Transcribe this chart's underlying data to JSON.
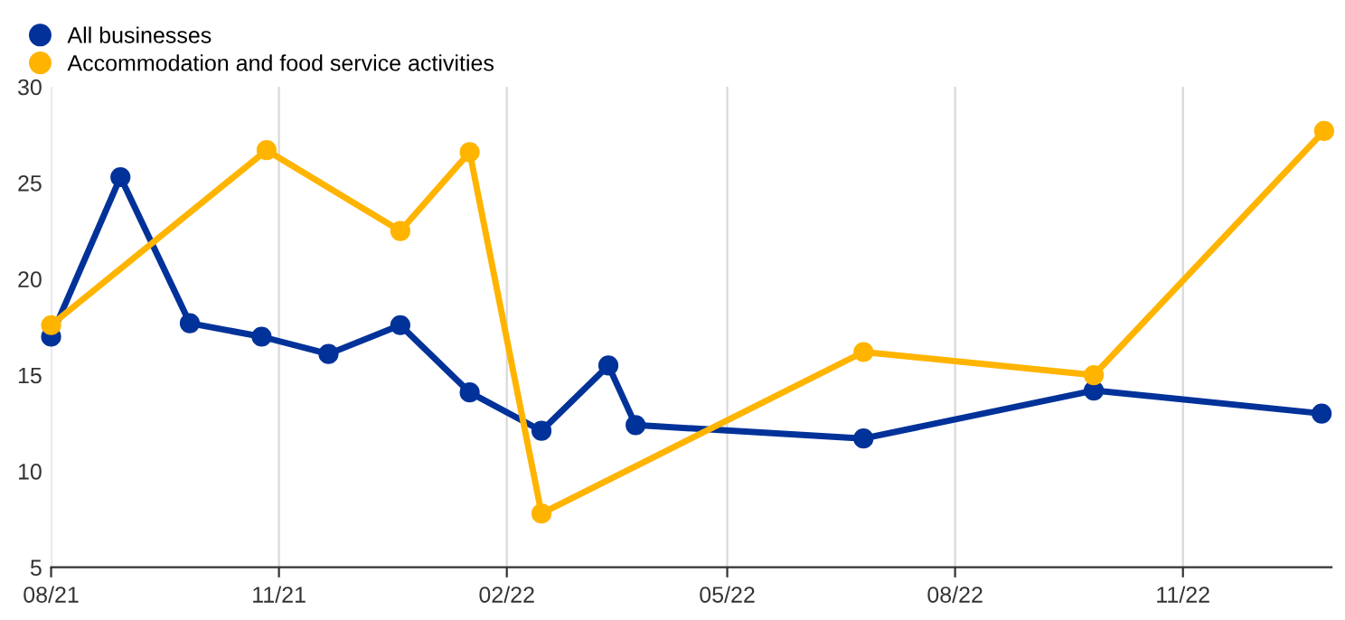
{
  "chart_data": {
    "type": "line",
    "marker": "circle",
    "grid": "x",
    "legend": "top left",
    "xlim": [
      "2021-08-01",
      "2022-12-31"
    ],
    "ylim": [
      5,
      30
    ],
    "yticks": [
      5,
      10,
      15,
      20,
      25,
      30
    ],
    "xticks": [
      {
        "value": "2021-08-01",
        "label": "08/21"
      },
      {
        "value": "2021-11-01",
        "label": "11/21"
      },
      {
        "value": "2022-02-01",
        "label": "02/22"
      },
      {
        "value": "2022-05-01",
        "label": "05/22"
      },
      {
        "value": "2022-08-01",
        "label": "08/22"
      },
      {
        "value": "2022-11-01",
        "label": "11/22"
      }
    ],
    "series": [
      {
        "name": "All businesses",
        "color": "#003299",
        "x": [
          "2021-08-01",
          "2021-08-29",
          "2021-09-26",
          "2021-10-25",
          "2021-11-21",
          "2021-12-20",
          "2022-01-17",
          "2022-02-15",
          "2022-03-14",
          "2022-03-25",
          "2022-06-25",
          "2022-09-26",
          "2022-12-27"
        ],
        "values": [
          17.0,
          25.3,
          17.7,
          17.0,
          16.1,
          17.6,
          14.1,
          12.1,
          15.5,
          12.4,
          11.7,
          14.2,
          13.0
        ]
      },
      {
        "name": "Accommodation and food service activities",
        "color": "#ffb400",
        "x": [
          "2021-08-01",
          "2021-10-27",
          "2021-12-20",
          "2022-01-17",
          "2022-02-15",
          "2022-06-25",
          "2022-09-26",
          "2022-12-28"
        ],
        "values": [
          17.6,
          26.7,
          22.5,
          26.6,
          7.8,
          16.2,
          15.0,
          27.7
        ]
      }
    ]
  }
}
